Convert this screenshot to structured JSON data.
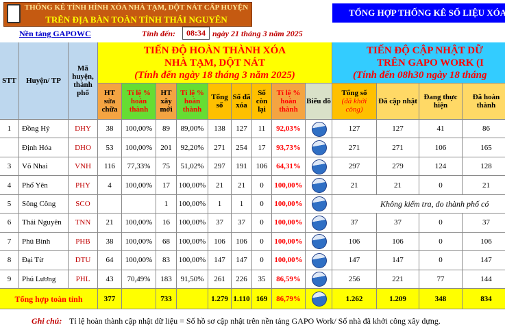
{
  "header": {
    "title_lines": [
      "THỐNG KÊ TÌNH HÌNH XÓA NHÀ TẠM, DỘT NÁT CẤP HUYỆN",
      "TRÊN ĐỊA BÀN TOÀN TỈNH THÁI NGUYÊN"
    ],
    "right_title": "TỔNG HỢP THỐNG KÊ SỐ LIỆU XÓA",
    "platform_link": "Nền tảng GAPOWC",
    "as_of_label": "Tính đến:",
    "as_of_time": "08:34",
    "as_of_date": "ngày 21 tháng 3 năm 2025"
  },
  "table": {
    "group_left": [
      "TIẾN ĐỘ HOÀN THÀNH XÓA",
      "NHÀ TẠM, DỘT NÁT",
      "(Tính đến ngày 18 tháng 3 năm 2025)"
    ],
    "group_right": [
      "TIẾN ĐỘ CẬP NHẬT DỮ",
      "TRÊN GAPO WORK (I",
      "(Tính đến 08h30 ngày 18 tháng"
    ],
    "columns": [
      "STT",
      "Huyện/ TP",
      "Mã huyện, thành phố",
      "HT sửa chữa",
      "Tỉ lệ % hoàn thành",
      "HT xây mới",
      "Tỉ lệ % hoàn thành",
      "Tổng số",
      "Số đã xóa",
      "Số còn lại",
      "Tỉ lệ % hoàn thành",
      "Biểu đồ",
      [
        "Tổng số",
        "(đã khởi công)"
      ],
      "Đã cập nhật",
      "Đang thực hiện",
      "Đã hoàn thành"
    ],
    "rows": [
      {
        "cells": [
          "1",
          "Đồng Hỷ",
          "DHY",
          "38",
          "100,00%",
          "89",
          "89,00%",
          "138",
          "127",
          "11",
          "92,03%"
        ],
        "right": [
          "127",
          "127",
          "41",
          "86"
        ]
      },
      {
        "cells": [
          null,
          "Định Hóa",
          "DHO",
          "53",
          "100,00%",
          "201",
          "92,20%",
          "271",
          "254",
          "17",
          "93,73%"
        ],
        "right": [
          "271",
          "271",
          "106",
          "165"
        ]
      },
      {
        "cells": [
          "3",
          "Võ Nhai",
          "VNH",
          "116",
          "77,33%",
          "75",
          "51,02%",
          "297",
          "191",
          "106",
          "64,31%"
        ],
        "right": [
          "297",
          "279",
          "124",
          "128"
        ]
      },
      {
        "cells": [
          "4",
          "Phổ Yên",
          "PHY",
          "4",
          "100,00%",
          "17",
          "100,00%",
          "21",
          "21",
          "0",
          "100,00%"
        ],
        "right": [
          "21",
          "21",
          "0",
          "21"
        ]
      },
      {
        "cells": [
          "5",
          "Sông Công",
          "SCO",
          null,
          null,
          "1",
          "100,00%",
          "1",
          "1",
          "0",
          "100,00%"
        ],
        "note": "Không kiểm tra, do thành phố có"
      },
      {
        "cells": [
          "6",
          "Thái Nguyên",
          "TNN",
          "21",
          "100,00%",
          "16",
          "100,00%",
          "37",
          "37",
          "0",
          "100,00%"
        ],
        "right": [
          "37",
          "37",
          "0",
          "37"
        ]
      },
      {
        "cells": [
          "7",
          "Phú Bình",
          "PHB",
          "38",
          "100,00%",
          "68",
          "100,00%",
          "106",
          "106",
          "0",
          "100,00%"
        ],
        "right": [
          "106",
          "106",
          "0",
          "106"
        ]
      },
      {
        "cells": [
          "8",
          "Đại Từ",
          "DTU",
          "64",
          "100,00%",
          "83",
          "100,00%",
          "147",
          "147",
          "0",
          "100,00%"
        ],
        "right": [
          "147",
          "147",
          "0",
          "147"
        ]
      },
      {
        "cells": [
          "9",
          "Phú Lương",
          "PHL",
          "43",
          "70,49%",
          "183",
          "91,50%",
          "261",
          "226",
          "35",
          "86,59%"
        ],
        "right": [
          "256",
          "221",
          "77",
          "144"
        ]
      }
    ],
    "total": {
      "label": "Tổng hợp toàn tỉnh",
      "cells": [
        "377",
        null,
        "733",
        null,
        "1.279",
        "1.110",
        "169",
        "86,79%"
      ],
      "right": [
        "1.262",
        "1.209",
        "348",
        "834"
      ]
    }
  },
  "footnote": {
    "label": "Ghi chú:",
    "text": "Tỉ lệ hoàn thành cập nhật dữ liệu = Số hồ sơ cập nhật trên nền tảng GAPO Work/ Số nhà đã khởi công xây dựng."
  }
}
